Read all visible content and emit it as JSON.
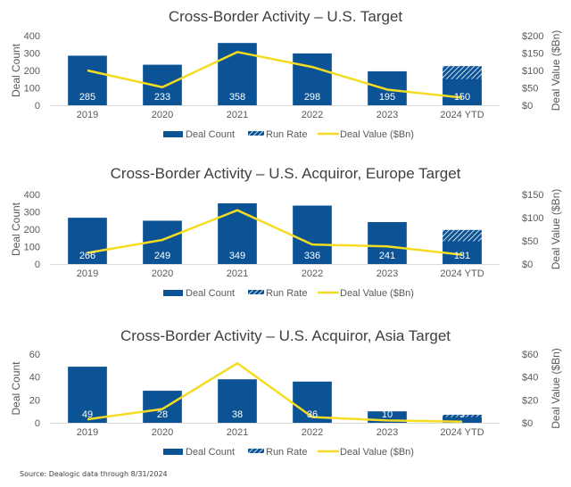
{
  "colors": {
    "bar": "#0b5394",
    "line": "#f5dc23",
    "axis": "#d9d9d9",
    "run_rate_stripe": "#ffffff"
  },
  "source": "Source: Dealogic data through 8/31/2024",
  "chart_data": [
    {
      "type": "bar",
      "title": "Cross-Border Activity – U.S. Target",
      "categories": [
        "2019",
        "2020",
        "2021",
        "2022",
        "2023",
        "2024 YTD"
      ],
      "ylabel": "Deal Count",
      "y2label": "Deal Value ($Bn)",
      "ylim": [
        0,
        400
      ],
      "yticks": [
        0,
        100,
        200,
        300,
        400
      ],
      "y2lim": [
        0,
        200
      ],
      "y2ticks": [
        "$0",
        "$50",
        "$100",
        "$150",
        "$200"
      ],
      "y2tick_values": [
        0,
        50,
        100,
        150,
        200
      ],
      "series": [
        {
          "name": "Deal Count",
          "kind": "bar",
          "values": [
            285,
            233,
            358,
            298,
            195,
            150
          ],
          "labels": [
            "285",
            "233",
            "358",
            "298",
            "195",
            "150"
          ]
        },
        {
          "name": "Run Rate",
          "kind": "bar-stacked-hatched",
          "values": [
            null,
            null,
            null,
            null,
            null,
            225
          ]
        },
        {
          "name": "Deal Value ($Bn)",
          "kind": "line",
          "axis": "right",
          "values": [
            100,
            52,
            153,
            110,
            45,
            22
          ]
        }
      ],
      "legend": [
        "Deal Count",
        "Run Rate",
        "Deal Value ($Bn)"
      ],
      "legend_position": "bottom",
      "grid": false
    },
    {
      "type": "bar",
      "title": "Cross-Border Activity – U.S. Acquiror, Europe Target",
      "categories": [
        "2019",
        "2020",
        "2021",
        "2022",
        "2023",
        "2024 YTD"
      ],
      "ylabel": "Deal Count",
      "y2label": "Deal Value ($Bn)",
      "ylim": [
        0,
        400
      ],
      "yticks": [
        0,
        100,
        200,
        300,
        400
      ],
      "y2lim": [
        0,
        150
      ],
      "y2ticks": [
        "$0",
        "$50",
        "$100",
        "$150"
      ],
      "y2tick_values": [
        0,
        50,
        100,
        150
      ],
      "series": [
        {
          "name": "Deal Count",
          "kind": "bar",
          "values": [
            266,
            249,
            349,
            336,
            241,
            131
          ],
          "labels": [
            "266",
            "249",
            "349",
            "336",
            "241",
            "131"
          ]
        },
        {
          "name": "Run Rate",
          "kind": "bar-stacked-hatched",
          "values": [
            null,
            null,
            null,
            null,
            null,
            196
          ]
        },
        {
          "name": "Deal Value ($Bn)",
          "kind": "line",
          "axis": "right",
          "values": [
            24,
            52,
            116,
            42,
            38,
            20
          ]
        }
      ],
      "legend": [
        "Deal Count",
        "Run Rate",
        "Deal Value ($Bn)"
      ],
      "legend_position": "bottom",
      "grid": false
    },
    {
      "type": "bar",
      "title": "Cross-Border Activity – U.S. Acquiror, Asia Target",
      "categories": [
        "2019",
        "2020",
        "2021",
        "2022",
        "2023",
        "2024 YTD"
      ],
      "ylabel": "Deal Count",
      "y2label": "Deal Value ($Bn)",
      "ylim": [
        0,
        60
      ],
      "yticks": [
        0,
        20,
        40,
        60
      ],
      "y2lim": [
        0,
        60
      ],
      "y2ticks": [
        "$0",
        "$20",
        "$40",
        "$60"
      ],
      "y2tick_values": [
        0,
        20,
        40,
        60
      ],
      "series": [
        {
          "name": "Deal Count",
          "kind": "bar",
          "values": [
            49,
            28,
            38,
            36,
            10,
            5
          ],
          "labels": [
            "49",
            "28",
            "38",
            "36",
            "10",
            "5"
          ]
        },
        {
          "name": "Run Rate",
          "kind": "bar-stacked-hatched",
          "values": [
            null,
            null,
            null,
            null,
            null,
            7
          ]
        },
        {
          "name": "Deal Value ($Bn)",
          "kind": "line",
          "axis": "right",
          "values": [
            3,
            12,
            52,
            5,
            2,
            1
          ]
        }
      ],
      "legend": [
        "Deal Count",
        "Run Rate",
        "Deal Value ($Bn)"
      ],
      "legend_position": "bottom",
      "grid": false
    }
  ]
}
